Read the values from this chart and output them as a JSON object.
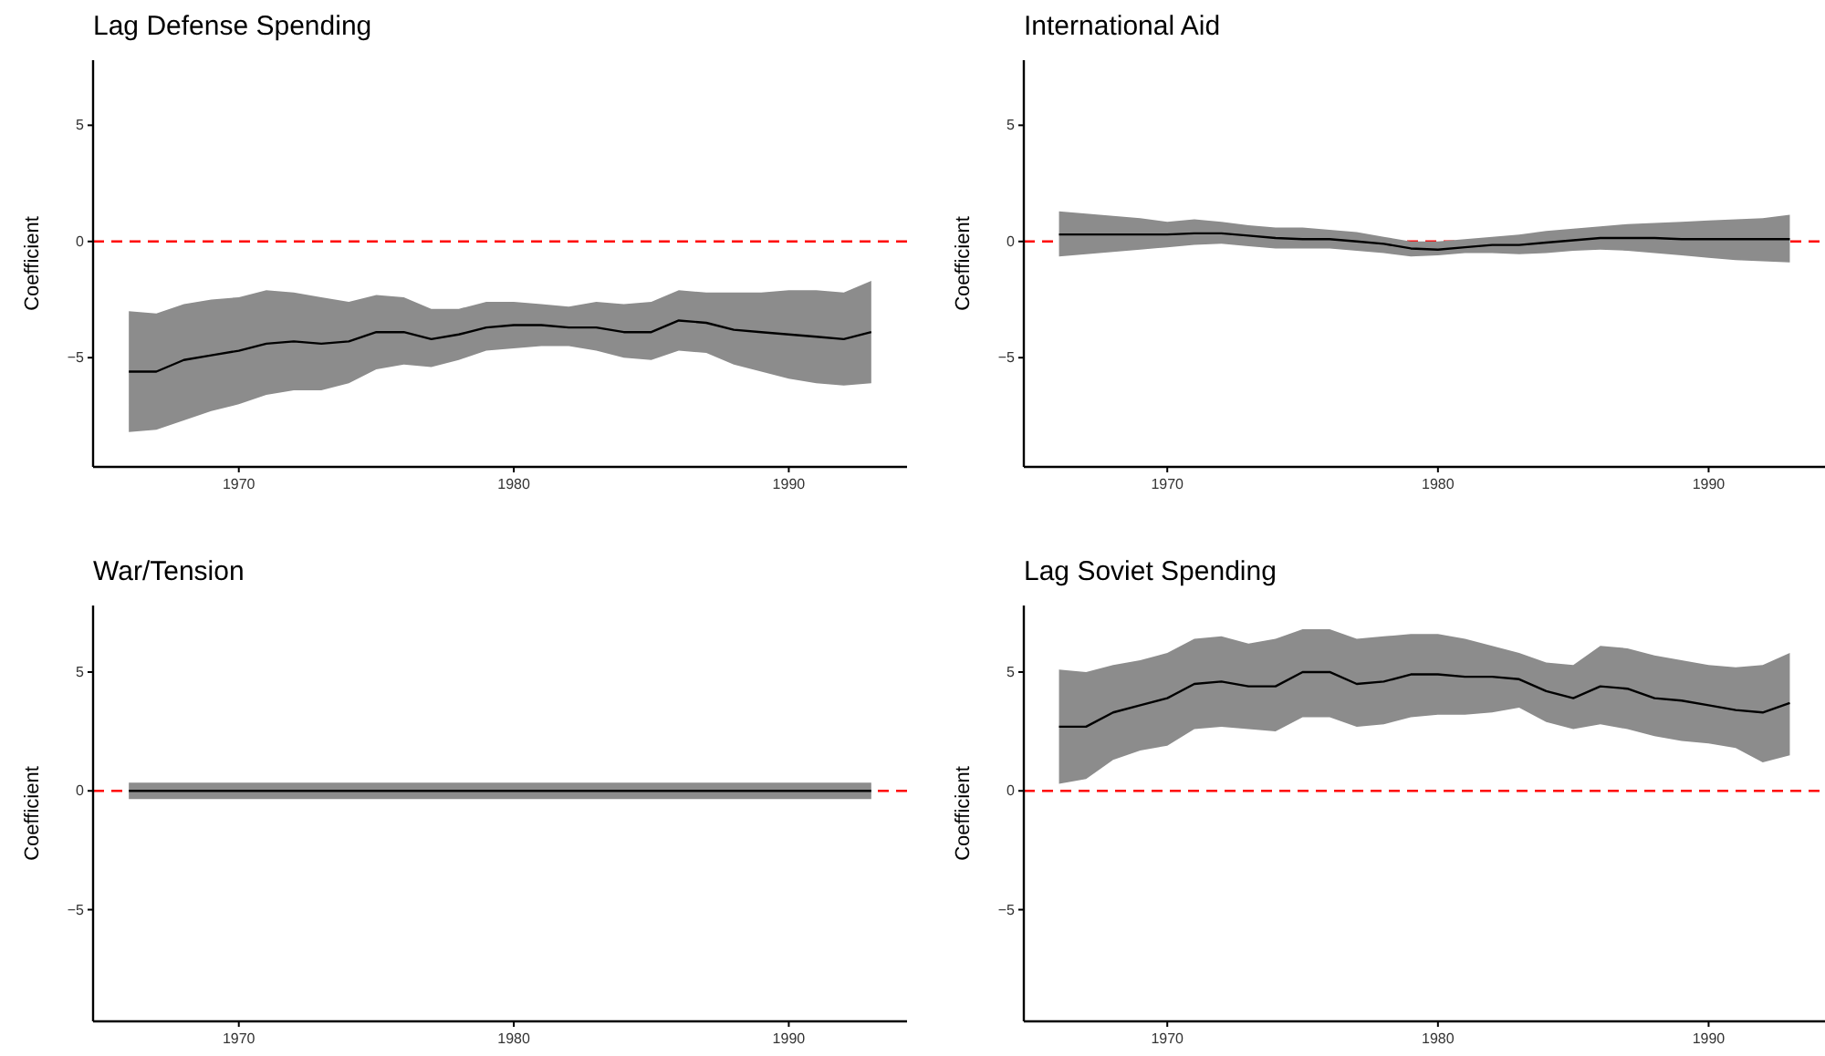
{
  "chart_data": [
    {
      "type": "line",
      "title": "Lag Defense Spending",
      "ylabel": "Coefficient",
      "x": [
        1966,
        1967,
        1968,
        1969,
        1970,
        1971,
        1972,
        1973,
        1974,
        1975,
        1976,
        1977,
        1978,
        1979,
        1980,
        1981,
        1982,
        1983,
        1984,
        1985,
        1986,
        1987,
        1988,
        1989,
        1990,
        1991,
        1992,
        1993
      ],
      "series": [
        {
          "color": "#000000",
          "values": [
            -5.6,
            -5.6,
            -5.1,
            -4.9,
            -4.7,
            -4.4,
            -4.3,
            -4.4,
            -4.3,
            -3.9,
            -3.9,
            -4.2,
            -4.0,
            -3.7,
            -3.6,
            -3.6,
            -3.7,
            -3.7,
            -3.9,
            -3.9,
            -3.4,
            -3.5,
            -3.8,
            -3.9,
            -4.0,
            -4.1,
            -4.2,
            -3.9
          ],
          "lower": [
            -8.2,
            -8.1,
            -7.7,
            -7.3,
            -7.0,
            -6.6,
            -6.4,
            -6.4,
            -6.1,
            -5.5,
            -5.3,
            -5.4,
            -5.1,
            -4.7,
            -4.6,
            -4.5,
            -4.5,
            -4.7,
            -5.0,
            -5.1,
            -4.7,
            -4.8,
            -5.3,
            -5.6,
            -5.9,
            -6.1,
            -6.2,
            -6.1
          ],
          "upper": [
            -3.0,
            -3.1,
            -2.7,
            -2.5,
            -2.4,
            -2.1,
            -2.2,
            -2.4,
            -2.6,
            -2.3,
            -2.4,
            -2.9,
            -2.9,
            -2.6,
            -2.6,
            -2.7,
            -2.8,
            -2.6,
            -2.7,
            -2.6,
            -2.1,
            -2.2,
            -2.2,
            -2.2,
            -2.1,
            -2.1,
            -2.2,
            -1.7
          ]
        }
      ],
      "xlim": [
        1964.7,
        1994.3
      ],
      "ylim": [
        -9.7,
        7.8
      ],
      "xticks": [
        1970,
        1980,
        1990
      ],
      "yticks": [
        -5,
        0,
        5
      ],
      "ref_lines": [
        {
          "axis": "y",
          "value": 0,
          "color": "#ff0000",
          "line_style": "dashed"
        }
      ]
    },
    {
      "type": "line",
      "title": "International Aid",
      "ylabel": "Coefficient",
      "x": [
        1966,
        1967,
        1968,
        1969,
        1970,
        1971,
        1972,
        1973,
        1974,
        1975,
        1976,
        1977,
        1978,
        1979,
        1980,
        1981,
        1982,
        1983,
        1984,
        1985,
        1986,
        1987,
        1988,
        1989,
        1990,
        1991,
        1992,
        1993
      ],
      "series": [
        {
          "color": "#000000",
          "values": [
            0.3,
            0.3,
            0.3,
            0.3,
            0.3,
            0.35,
            0.35,
            0.25,
            0.15,
            0.1,
            0.1,
            0.0,
            -0.1,
            -0.3,
            -0.35,
            -0.25,
            -0.15,
            -0.15,
            -0.05,
            0.05,
            0.15,
            0.15,
            0.15,
            0.1,
            0.1,
            0.1,
            0.1,
            0.1
          ],
          "lower": [
            -0.65,
            -0.55,
            -0.45,
            -0.35,
            -0.25,
            -0.15,
            -0.1,
            -0.2,
            -0.3,
            -0.3,
            -0.3,
            -0.4,
            -0.5,
            -0.65,
            -0.6,
            -0.5,
            -0.5,
            -0.55,
            -0.5,
            -0.4,
            -0.35,
            -0.4,
            -0.5,
            -0.6,
            -0.7,
            -0.8,
            -0.85,
            -0.9
          ],
          "upper": [
            1.3,
            1.2,
            1.1,
            1.0,
            0.85,
            0.95,
            0.85,
            0.7,
            0.6,
            0.6,
            0.5,
            0.4,
            0.2,
            0.0,
            0.0,
            0.1,
            0.2,
            0.3,
            0.45,
            0.55,
            0.65,
            0.75,
            0.8,
            0.85,
            0.9,
            0.95,
            1.0,
            1.15
          ]
        }
      ],
      "xlim": [
        1964.7,
        1994.3
      ],
      "ylim": [
        -9.7,
        7.8
      ],
      "xticks": [
        1970,
        1980,
        1990
      ],
      "yticks": [
        -5,
        0,
        5
      ],
      "ref_lines": [
        {
          "axis": "y",
          "value": 0,
          "color": "#ff0000",
          "line_style": "dashed"
        }
      ]
    },
    {
      "type": "line",
      "title": "War/Tension",
      "ylabel": "Coefficient",
      "x": [
        1966,
        1967,
        1968,
        1969,
        1970,
        1971,
        1972,
        1973,
        1974,
        1975,
        1976,
        1977,
        1978,
        1979,
        1980,
        1981,
        1982,
        1983,
        1984,
        1985,
        1986,
        1987,
        1988,
        1989,
        1990,
        1991,
        1992,
        1993
      ],
      "series": [
        {
          "color": "#000000",
          "values": [
            0,
            0,
            0,
            0,
            0,
            0,
            0,
            0,
            0,
            0,
            0,
            0,
            0,
            0,
            0,
            0,
            0,
            0,
            0,
            0,
            0,
            0,
            0,
            0,
            0,
            0,
            0,
            0
          ],
          "lower": [
            -0.35,
            -0.35,
            -0.35,
            -0.35,
            -0.35,
            -0.35,
            -0.35,
            -0.35,
            -0.35,
            -0.35,
            -0.35,
            -0.35,
            -0.35,
            -0.35,
            -0.35,
            -0.35,
            -0.35,
            -0.35,
            -0.35,
            -0.35,
            -0.35,
            -0.35,
            -0.35,
            -0.35,
            -0.35,
            -0.35,
            -0.35,
            -0.35
          ],
          "upper": [
            0.35,
            0.35,
            0.35,
            0.35,
            0.35,
            0.35,
            0.35,
            0.35,
            0.35,
            0.35,
            0.35,
            0.35,
            0.35,
            0.35,
            0.35,
            0.35,
            0.35,
            0.35,
            0.35,
            0.35,
            0.35,
            0.35,
            0.35,
            0.35,
            0.35,
            0.35,
            0.35,
            0.35
          ]
        }
      ],
      "xlim": [
        1964.7,
        1994.3
      ],
      "ylim": [
        -9.7,
        7.8
      ],
      "xticks": [
        1970,
        1980,
        1990
      ],
      "yticks": [
        -5,
        0,
        5
      ],
      "ref_lines": [
        {
          "axis": "y",
          "value": 0,
          "color": "#ff0000",
          "line_style": "dashed"
        }
      ]
    },
    {
      "type": "line",
      "title": "Lag Soviet Spending",
      "ylabel": "Coefficient",
      "x": [
        1966,
        1967,
        1968,
        1969,
        1970,
        1971,
        1972,
        1973,
        1974,
        1975,
        1976,
        1977,
        1978,
        1979,
        1980,
        1981,
        1982,
        1983,
        1984,
        1985,
        1986,
        1987,
        1988,
        1989,
        1990,
        1991,
        1992,
        1993
      ],
      "series": [
        {
          "color": "#000000",
          "values": [
            2.7,
            2.7,
            3.3,
            3.6,
            3.9,
            4.5,
            4.6,
            4.4,
            4.4,
            5.0,
            5.0,
            4.5,
            4.6,
            4.9,
            4.9,
            4.8,
            4.8,
            4.7,
            4.2,
            3.9,
            4.4,
            4.3,
            3.9,
            3.8,
            3.6,
            3.4,
            3.3,
            3.7
          ],
          "lower": [
            0.3,
            0.5,
            1.3,
            1.7,
            1.9,
            2.6,
            2.7,
            2.6,
            2.5,
            3.1,
            3.1,
            2.7,
            2.8,
            3.1,
            3.2,
            3.2,
            3.3,
            3.5,
            2.9,
            2.6,
            2.8,
            2.6,
            2.3,
            2.1,
            2.0,
            1.8,
            1.2,
            1.5
          ],
          "upper": [
            5.1,
            5.0,
            5.3,
            5.5,
            5.8,
            6.4,
            6.5,
            6.2,
            6.4,
            6.8,
            6.8,
            6.4,
            6.5,
            6.6,
            6.6,
            6.4,
            6.1,
            5.8,
            5.4,
            5.3,
            6.1,
            6.0,
            5.7,
            5.5,
            5.3,
            5.2,
            5.3,
            5.8
          ]
        }
      ],
      "xlim": [
        1964.7,
        1994.3
      ],
      "ylim": [
        -9.7,
        7.8
      ],
      "xticks": [
        1970,
        1980,
        1990
      ],
      "yticks": [
        -5,
        0,
        5
      ],
      "ref_lines": [
        {
          "axis": "y",
          "value": 0,
          "color": "#ff0000",
          "line_style": "dashed"
        }
      ]
    }
  ]
}
